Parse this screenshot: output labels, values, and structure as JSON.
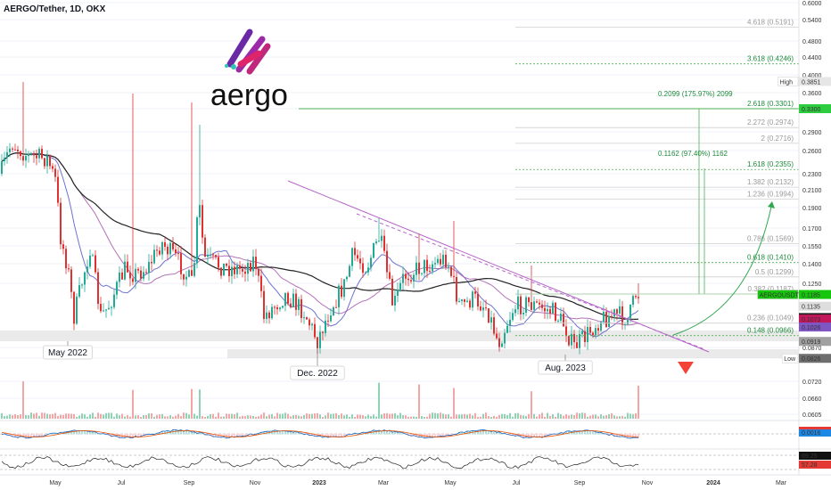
{
  "chart_data": {
    "type": "candlestick",
    "title": "AERGO/Tether, 1D, OKX",
    "logo_text": "aergo",
    "colors": {
      "up": "#22ab94",
      "down": "#e03131",
      "ema_black": "#222222",
      "ema_purple": "#a04fa8",
      "ema_blue": "#4a4fc4",
      "fib": "#4caf50",
      "trend": "#b565c8",
      "zone": "#d9d9d9"
    },
    "y_ticks": [
      "0.6000",
      "0.5400",
      "0.4800",
      "0.4400",
      "0.4000",
      "0.3600",
      "0.3300",
      "0.2900",
      "0.2600",
      "0.2300",
      "0.2100",
      "0.1900",
      "0.1700",
      "0.1550",
      "0.1400",
      "0.1250",
      "0.0870",
      "0.0827",
      "0.0720",
      "0.0660",
      "0.0605"
    ],
    "x_ticks": [
      "May",
      "Jul",
      "Sep",
      "Nov",
      "2023",
      "Mar",
      "May",
      "Jul",
      "Sep",
      "Nov",
      "2024",
      "Mar"
    ],
    "fib_levels": [
      {
        "label": "4.618 (0.5191)",
        "strong": false
      },
      {
        "label": "3.618 (0.4246)",
        "strong": true
      },
      {
        "label": "2.618 (0.3301)",
        "strong": true
      },
      {
        "label": "2.272 (0.2974)",
        "strong": false
      },
      {
        "label": "2 (0.2716)",
        "strong": false
      },
      {
        "label": "1.618 (0.2355)",
        "strong": true
      },
      {
        "label": "1.382 (0.2132)",
        "strong": false
      },
      {
        "label": "1.236 (0.1994)",
        "strong": false
      },
      {
        "label": "0.786 (0.1569)",
        "strong": false
      },
      {
        "label": "0.618 (0.1410)",
        "strong": true
      },
      {
        "label": "0.5 (0.1299)",
        "strong": false
      },
      {
        "label": "0.382 (0.1187)",
        "strong": false
      },
      {
        "label": "0.236 (0.1049)",
        "strong": false
      },
      {
        "label": "0.148 (0.0966)",
        "strong": true
      }
    ],
    "measurements": [
      {
        "label": "0.2099 (175.97%) 2099"
      },
      {
        "label": "0.1162 (97.40%) 1162"
      }
    ],
    "callouts": [
      "May 2022",
      "Dec. 2022",
      "Aug. 2023"
    ],
    "price_tags": [
      {
        "text": "High",
        "value": "0.3851"
      },
      {
        "text": "",
        "value": "0.3300"
      },
      {
        "text": "AERGOUSDT",
        "value": "0.1185"
      },
      {
        "text": "",
        "value": "0.1135"
      },
      {
        "text": "",
        "value": "0.1082"
      },
      {
        "text": "",
        "value": "0.1073"
      },
      {
        "text": "",
        "value": "0.1026"
      },
      {
        "text": "",
        "value": "0.0919"
      },
      {
        "text": "Low",
        "value": "0.0826"
      }
    ],
    "macd_tags": [
      "0.0016"
    ],
    "rsi_tags": [
      "69.25",
      "57.28"
    ]
  }
}
